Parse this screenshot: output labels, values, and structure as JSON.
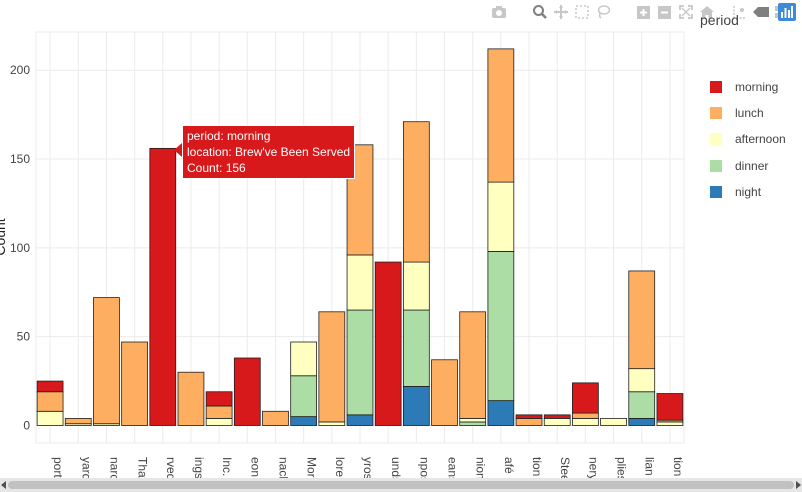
{
  "modebar": {
    "camera_icon": "camera-icon",
    "zoom_icon": "zoom-icon",
    "pan_icon": "pan-icon",
    "select_icon": "box-select-icon",
    "lasso_icon": "lasso-icon",
    "zoom_in_icon": "zoom-in-icon",
    "zoom_out_icon": "zoom-out-icon",
    "autoscale_icon": "autoscale-icon",
    "home_icon": "home-icon",
    "spike_icon": "spikelines-icon",
    "hover_icon": "hover-closest-icon",
    "compare_icon": "hover-compare-icon",
    "logo_icon": "plotly-logo-icon"
  },
  "tooltip": {
    "line1": "period: morning",
    "line2": "location: Brew've Been Served",
    "line3": "Count: 156"
  },
  "chart_data": {
    "type": "bar",
    "barmode": "stack",
    "categories": [
      "port",
      "yard",
      "naro",
      "That",
      "rved",
      "ings",
      "Inc.",
      "eon",
      "nack",
      "More",
      "lore",
      "yros",
      "unds",
      "npos",
      "eans",
      "nion",
      "afé",
      "tion",
      "Steel",
      "nery",
      "plies",
      "lian",
      "tion"
    ],
    "series": [
      {
        "name": "night",
        "color": "#2c7bb6",
        "values": [
          0,
          0,
          0,
          0,
          0,
          0,
          0,
          0,
          0,
          5,
          0,
          6,
          0,
          22,
          0,
          0,
          14,
          0,
          0,
          0,
          0,
          4,
          0
        ]
      },
      {
        "name": "dinner",
        "color": "#abdda4",
        "values": [
          0,
          0,
          0,
          0,
          0,
          0,
          0,
          0,
          0,
          23,
          0,
          59,
          0,
          43,
          0,
          2,
          84,
          0,
          0,
          0,
          0,
          15,
          0
        ]
      },
      {
        "name": "afternoon",
        "color": "#ffffbf",
        "values": [
          8,
          1,
          1,
          0,
          0,
          0,
          4,
          0,
          0,
          19,
          2,
          31,
          0,
          27,
          0,
          2,
          39,
          0,
          4,
          4,
          4,
          13,
          2
        ]
      },
      {
        "name": "lunch",
        "color": "#fdae61",
        "values": [
          11,
          3,
          71,
          47,
          0,
          30,
          7,
          0,
          8,
          0,
          62,
          62,
          0,
          79,
          37,
          60,
          75,
          4,
          0,
          3,
          0,
          55,
          1
        ]
      },
      {
        "name": "morning",
        "color": "#d7191c",
        "values": [
          6,
          0,
          0,
          0,
          156,
          0,
          8,
          38,
          0,
          0,
          0,
          0,
          92,
          0,
          0,
          0,
          0,
          2,
          2,
          17,
          0,
          0,
          15
        ]
      }
    ],
    "legend_order": [
      "morning",
      "lunch",
      "afternoon",
      "dinner",
      "night"
    ],
    "legend_title": "period",
    "ylabel": "Count",
    "yticks": [
      0,
      50,
      100,
      150,
      200
    ],
    "ylim": [
      -10,
      222
    ],
    "grid": true,
    "legend_position": "right"
  }
}
